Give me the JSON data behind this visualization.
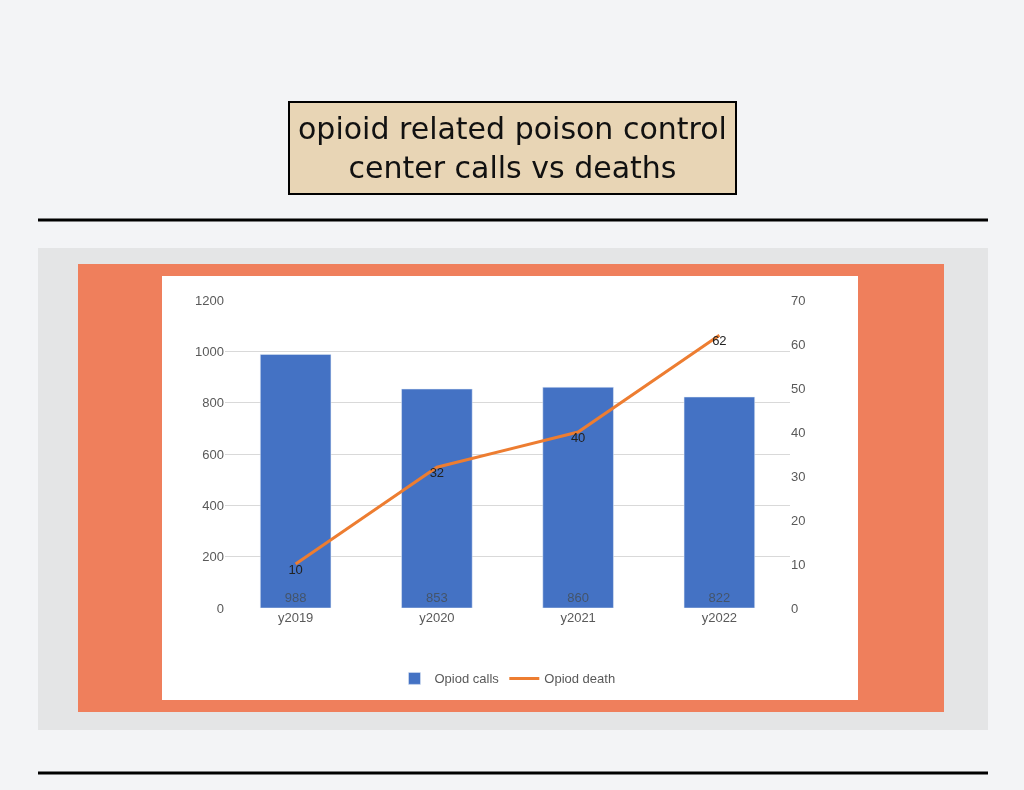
{
  "chart_data": {
    "type": "bar",
    "title": "opioid related poison control\ncenter calls vs deaths",
    "categories": [
      "y2019",
      "y2020",
      "y2021",
      "y2022"
    ],
    "series": [
      {
        "name": "Opiod calls",
        "color": "#4472c4",
        "values": [
          988,
          853,
          860,
          822
        ]
      },
      {
        "name": "Opiod death",
        "type": "line",
        "axis": "y2",
        "color": "#ed7d31",
        "values": [
          10,
          32,
          40,
          62
        ]
      }
    ],
    "ylim": [
      0,
      1200
    ],
    "yticks": [
      0,
      200,
      400,
      600,
      800,
      1000,
      1200
    ],
    "y2lim": [
      0,
      70
    ],
    "y2ticks": [
      0,
      10,
      20,
      30,
      40,
      50,
      60,
      70
    ],
    "data_labels": true,
    "grid": "y",
    "legend": "bottom",
    "marker": "none",
    "line_style": "solid"
  }
}
